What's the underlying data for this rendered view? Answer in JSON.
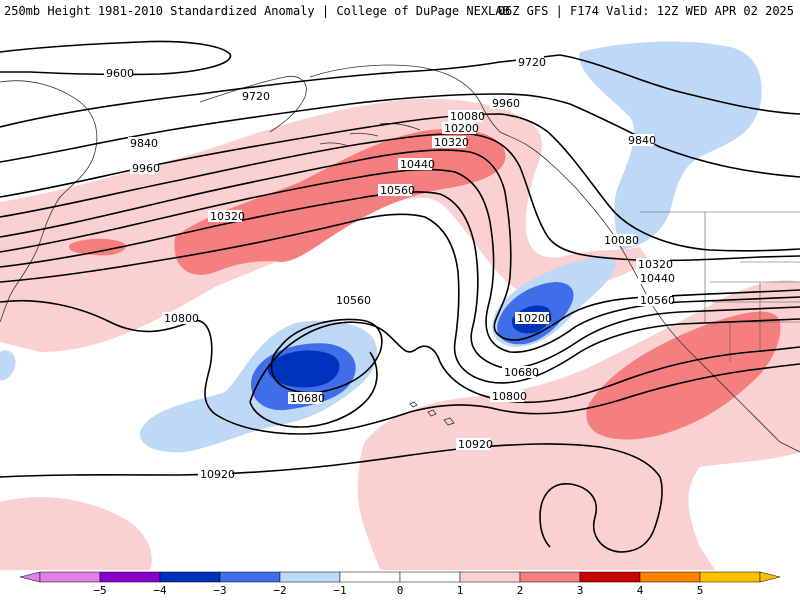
{
  "header": {
    "title_left": "250mb Height 1981-2010 Standardized Anomaly | College of DuPage NEXLAB",
    "title_right": "06Z GFS | F174 Valid: 12Z WED APR 02 2025"
  },
  "colors": {
    "neg5": "#e080e8",
    "neg4": "#8800cc",
    "neg3": "#0033bb",
    "neg2": "#3f6ee8",
    "neg1": "#bed8f7",
    "zero": "#ffffff",
    "pos1": "#fbd0d0",
    "pos2": "#f57e7e",
    "pos3": "#cc0000",
    "pos4": "#ff8000",
    "pos5": "#ffc000",
    "contour": "#000000",
    "coastline": "#333333"
  },
  "contour_labels": [
    {
      "id": "lbl-9600",
      "text": "9600"
    },
    {
      "id": "lbl-9720-a",
      "text": "9720"
    },
    {
      "id": "lbl-9720-b",
      "text": "9720"
    },
    {
      "id": "lbl-9840-a",
      "text": "9840"
    },
    {
      "id": "lbl-9840-b",
      "text": "9840"
    },
    {
      "id": "lbl-9960-a",
      "text": "9960"
    },
    {
      "id": "lbl-9960-b",
      "text": "9960"
    },
    {
      "id": "lbl-10080-a",
      "text": "10080"
    },
    {
      "id": "lbl-10080-b",
      "text": "10080"
    },
    {
      "id": "lbl-10200-a",
      "text": "10200"
    },
    {
      "id": "lbl-10200-b",
      "text": "10200"
    },
    {
      "id": "lbl-10320-a",
      "text": "10320"
    },
    {
      "id": "lbl-10320-b",
      "text": "10320"
    },
    {
      "id": "lbl-10320-c",
      "text": "10320"
    },
    {
      "id": "lbl-10440-a",
      "text": "10440"
    },
    {
      "id": "lbl-10440-b",
      "text": "10440"
    },
    {
      "id": "lbl-10560-a",
      "text": "10560"
    },
    {
      "id": "lbl-10560-b",
      "text": "10560"
    },
    {
      "id": "lbl-10560-c",
      "text": "10560"
    },
    {
      "id": "lbl-10680-a",
      "text": "10680"
    },
    {
      "id": "lbl-10680-b",
      "text": "10680"
    },
    {
      "id": "lbl-10800-a",
      "text": "10800"
    },
    {
      "id": "lbl-10800-b",
      "text": "10800"
    },
    {
      "id": "lbl-10920-a",
      "text": "10920"
    },
    {
      "id": "lbl-10920-b",
      "text": "10920"
    }
  ],
  "colorbar": {
    "ticks": [
      "−5",
      "−4",
      "−3",
      "−2",
      "−1",
      "0",
      "1",
      "2",
      "3",
      "4",
      "5"
    ],
    "segments": [
      "#e080e8",
      "#8800cc",
      "#0033bb",
      "#3f6ee8",
      "#bed8f7",
      "#ffffff",
      "#ffffff",
      "#fbd0d0",
      "#f57e7e",
      "#cc0000",
      "#ff8000",
      "#ffc000"
    ]
  }
}
